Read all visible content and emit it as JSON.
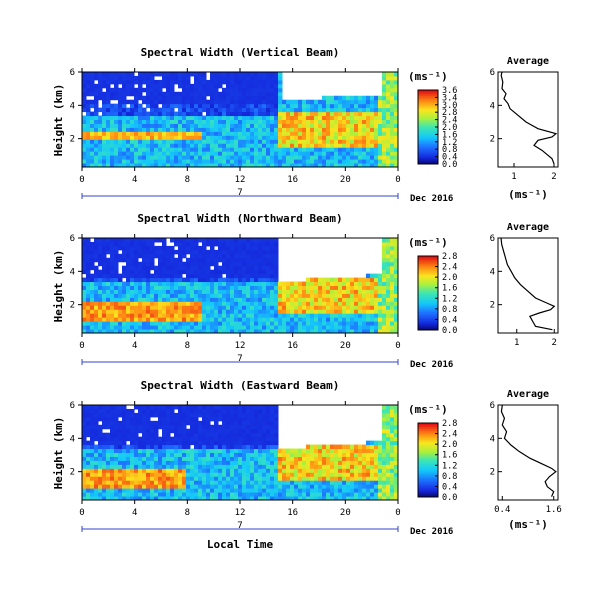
{
  "figure": {
    "date_label": "Dec 2016",
    "xlabel_bottom": "Local Time",
    "day_label": "7",
    "colorbar_unit": "(ms⁻¹)",
    "profile_title": "Average",
    "profile_xunit": "(ms⁻¹)"
  },
  "chart_data": [
    {
      "type": "heatmap",
      "title": "Spectral Width (Vertical Beam)",
      "ylabel": "Height (km)",
      "xlabel": "",
      "x_ticks": [
        "0",
        "4",
        "8",
        "12",
        "16",
        "20",
        "0"
      ],
      "xlim": [
        0,
        24
      ],
      "y_ticks": [
        "2",
        "4",
        "6"
      ],
      "ylim": [
        0.3,
        6.0
      ],
      "colorbar": {
        "ticks": [
          "3.6",
          "3.4",
          "3.0",
          "2.8",
          "2.4",
          "2.0",
          "1.6",
          "1.2",
          "0.8",
          "0.4",
          "0.0"
        ],
        "range": [
          0.0,
          3.6
        ]
      },
      "data_gap": {
        "x": [
          15.2,
          22.8
        ],
        "y_above": 4.3
      },
      "layer_bands": [
        {
          "y": [
            2.0,
            2.5
          ],
          "x": [
            0,
            9
          ],
          "value": 3.2
        },
        {
          "y": [
            4.0,
            6.0
          ],
          "x": [
            0,
            15
          ],
          "value": 0.4
        }
      ],
      "profile": {
        "title": "Average",
        "x_ticks": [
          "1",
          "2"
        ],
        "xlim": [
          0.6,
          2.1
        ],
        "y_ticks": [
          "2",
          "4",
          "6"
        ],
        "ylim": [
          0.3,
          6.0
        ],
        "height": [
          0.5,
          0.8,
          1.0,
          1.3,
          1.6,
          1.9,
          2.1,
          2.3,
          2.6,
          3.0,
          3.4,
          3.8,
          4.1,
          4.4,
          4.7,
          5.0,
          5.4,
          5.8,
          6.0
        ],
        "value": [
          2.0,
          1.95,
          1.85,
          1.7,
          1.5,
          1.6,
          1.95,
          2.05,
          1.6,
          1.3,
          1.1,
          0.9,
          0.85,
          0.75,
          0.8,
          0.7,
          0.72,
          0.68,
          0.7
        ]
      }
    },
    {
      "type": "heatmap",
      "title": "Spectral Width (Northward Beam)",
      "ylabel": "Height (km)",
      "xlabel": "",
      "x_ticks": [
        "0",
        "4",
        "8",
        "12",
        "16",
        "20",
        "0"
      ],
      "xlim": [
        0,
        24
      ],
      "y_ticks": [
        "2",
        "4",
        "6"
      ],
      "ylim": [
        0.3,
        6.0
      ],
      "colorbar": {
        "ticks": [
          "2.8",
          "2.4",
          "2.0",
          "1.6",
          "1.2",
          "0.8",
          "0.4",
          "0.0"
        ],
        "range": [
          0.0,
          2.8
        ]
      },
      "data_gap": {
        "x": [
          14.8,
          22.8
        ],
        "y_above": 3.4
      },
      "layer_bands": [
        {
          "y": [
            1.0,
            2.2
          ],
          "x": [
            0,
            9
          ],
          "value": 2.6
        },
        {
          "y": [
            3.6,
            6.0
          ],
          "x": [
            0,
            15
          ],
          "value": 0.3
        }
      ],
      "profile": {
        "title": "Average",
        "x_ticks": [
          "1",
          "2"
        ],
        "xlim": [
          0.5,
          2.1
        ],
        "y_ticks": [
          "2",
          "4",
          "6"
        ],
        "ylim": [
          0.3,
          6.0
        ],
        "height": [
          0.5,
          0.7,
          0.9,
          1.1,
          1.3,
          1.5,
          1.7,
          1.9,
          2.1,
          2.4,
          2.8,
          3.2,
          3.6,
          4.0,
          4.4,
          4.8,
          5.2,
          5.6,
          6.0
        ],
        "value": [
          1.95,
          1.5,
          1.45,
          1.4,
          1.35,
          1.6,
          1.9,
          2.0,
          1.8,
          1.5,
          1.3,
          1.1,
          0.95,
          0.85,
          0.75,
          0.7,
          0.65,
          0.6,
          0.58
        ]
      }
    },
    {
      "type": "heatmap",
      "title": "Spectral Width (Eastward Beam)",
      "ylabel": "Height (km)",
      "xlabel": "Local Time",
      "x_ticks": [
        "0",
        "4",
        "8",
        "12",
        "16",
        "20",
        "0"
      ],
      "xlim": [
        0,
        24
      ],
      "y_ticks": [
        "2",
        "4",
        "6"
      ],
      "ylim": [
        0.3,
        6.0
      ],
      "colorbar": {
        "ticks": [
          "2.8",
          "2.4",
          "2.0",
          "1.6",
          "1.2",
          "0.8",
          "0.4",
          "0.0"
        ],
        "range": [
          0.0,
          2.8
        ]
      },
      "data_gap": {
        "x": [
          14.8,
          22.8
        ],
        "y_above": 3.4
      },
      "layer_bands": [
        {
          "y": [
            1.0,
            2.2
          ],
          "x": [
            0,
            8
          ],
          "value": 2.6
        },
        {
          "y": [
            3.6,
            6.0
          ],
          "x": [
            0,
            15
          ],
          "value": 0.3
        }
      ],
      "profile": {
        "title": "Average",
        "x_ticks": [
          "0.4",
          "1.6"
        ],
        "xlim": [
          0.3,
          1.7
        ],
        "y_ticks": [
          "2",
          "4",
          "6"
        ],
        "ylim": [
          0.3,
          6.0
        ],
        "height": [
          0.5,
          0.8,
          1.1,
          1.4,
          1.7,
          2.0,
          2.2,
          2.5,
          2.8,
          3.2,
          3.6,
          4.0,
          4.4,
          4.8,
          5.2,
          5.6,
          6.0
        ],
        "value": [
          1.55,
          1.6,
          1.45,
          1.4,
          1.5,
          1.65,
          1.55,
          1.3,
          1.05,
          0.8,
          0.6,
          0.45,
          0.5,
          0.4,
          0.45,
          0.38,
          0.4
        ]
      }
    }
  ]
}
